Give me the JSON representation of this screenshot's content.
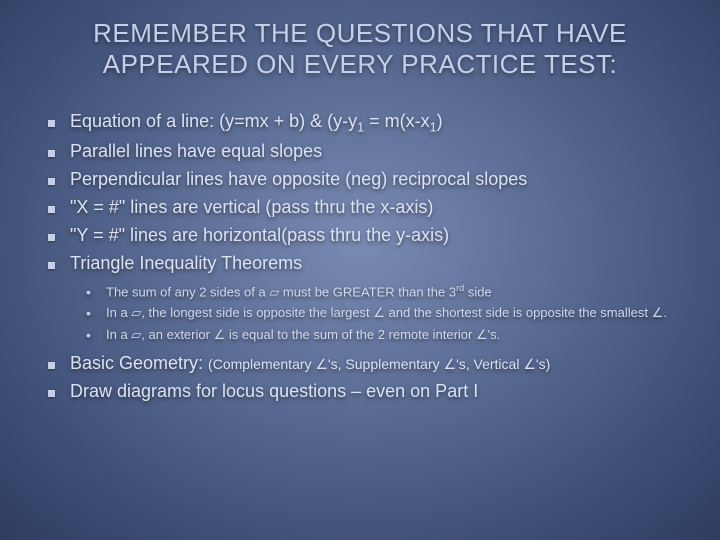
{
  "colors": {
    "text": "#d0d8ec",
    "title": "#c6cfe8",
    "bullet": "#c6cfe8",
    "bg_center": "#7a8bb3",
    "bg_edge": "#2e3d5f"
  },
  "title": {
    "line1": "REMEMBER THE QUESTIONS THAT HAVE",
    "line2": "APPEARED ON EVERY PRACTICE TEST:"
  },
  "bullets": [
    {
      "html": "Equation of a line: (y=mx + b) & (y-y<span class='subscript'>1</span> = m(x-x<span class='subscript'>1</span>)"
    },
    {
      "html": "Parallel lines have equal slopes"
    },
    {
      "html": "Perpendicular lines have opposite (neg) reciprocal slopes"
    },
    {
      "html": "\"X = #\" lines are vertical (pass thru the x-axis)"
    },
    {
      "html": "\"Y = #\" lines are horizontal(pass thru the y-axis)"
    },
    {
      "html": "Triangle Inequality Theorems"
    }
  ],
  "sub_bullets": [
    {
      "html": "The sum of any 2 sides of a <span class='tri'>▱</span> must be GREATER than the 3<span class='supscript'>rd</span> side"
    },
    {
      "html": "In a <span class='tri'>▱</span>, the longest side is opposite the largest <span class='ang'>∠</span> and the shortest side is opposite the smallest <span class='ang'>∠</span>."
    },
    {
      "html": "In a <span class='tri'>▱</span>, an exterior <span class='ang'>∠</span> is equal to the sum of the 2 remote interior <span class='ang'>∠</span>'s."
    }
  ],
  "bullets_after": [
    {
      "html": "Basic Geometry: <span class='sub-note'>(Complementary <span class='ang'>∠</span>'s, Supplementary <span class='ang'>∠</span>'s, Vertical <span class='ang'>∠</span>'s)</span>"
    },
    {
      "html": "Draw diagrams for locus questions – even on Part I"
    }
  ]
}
